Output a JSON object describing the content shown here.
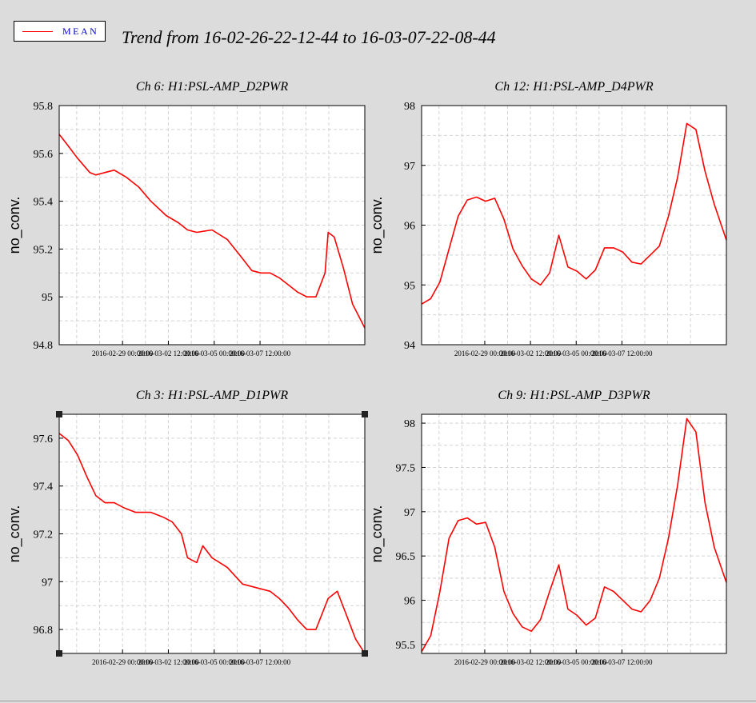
{
  "header": {
    "legend_label": "MEAN",
    "title": "Trend from 16-02-26-22-12-44 to 16-03-07-22-08-44"
  },
  "colors": {
    "series": "#ff0000",
    "legend_text": "#0000cc",
    "background": "#dcdcdc",
    "plot_background": "#ffffff",
    "grid": "#d2d2d2"
  },
  "chart_data": [
    {
      "type": "line",
      "title": "Ch 6: H1:PSL-AMP_D2PWR",
      "ylabel": "no_conv.",
      "xlabel": "",
      "ylim": [
        94.8,
        95.8
      ],
      "yticks": [
        94.8,
        95.0,
        95.2,
        95.4,
        95.6,
        95.8
      ],
      "ytick_labels": [
        "94.8",
        "95",
        "95.2",
        "95.4",
        "95.6",
        "95.8"
      ],
      "xlim": [
        0.0,
        10.0
      ],
      "xticks": [
        2.0722,
        3.5722,
        5.0722,
        6.5722
      ],
      "xtick_labels": [
        "2016-02-29 00:00:00",
        "2016-03-02 12:00:00",
        "2016-03-05 00:00:00",
        "2016-03-07 12:00:00"
      ],
      "grid": true,
      "series": [
        {
          "x": [
            0,
            0.3,
            0.6,
            1.0,
            1.2,
            1.5,
            1.8,
            2.2,
            2.6,
            3.0,
            3.5,
            3.9,
            4.2,
            4.5,
            5.0,
            5.5,
            6.0,
            6.3,
            6.6,
            6.9,
            7.2,
            7.5,
            7.8,
            8.1,
            8.4,
            8.7,
            8.8,
            9.0,
            9.3,
            9.6,
            10.0
          ],
          "y": [
            95.68,
            95.63,
            95.58,
            95.52,
            95.51,
            95.52,
            95.53,
            95.5,
            95.46,
            95.4,
            95.34,
            95.31,
            95.28,
            95.27,
            95.28,
            95.24,
            95.16,
            95.11,
            95.1,
            95.1,
            95.08,
            95.05,
            95.02,
            95.0,
            95.0,
            95.1,
            95.27,
            95.25,
            95.12,
            94.97,
            94.87
          ]
        }
      ]
    },
    {
      "type": "line",
      "title": "Ch 12: H1:PSL-AMP_D4PWR",
      "ylabel": "no_conv.",
      "xlabel": "",
      "ylim": [
        94,
        98
      ],
      "yticks": [
        94,
        95,
        96,
        97,
        98
      ],
      "ytick_labels": [
        "94",
        "95",
        "96",
        "97",
        "98"
      ],
      "xlim": [
        0.0,
        10.0
      ],
      "xticks": [
        2.0722,
        3.5722,
        5.0722,
        6.5722
      ],
      "xtick_labels": [
        "2016-02-29 00:00:00",
        "2016-03-02 12:00:00",
        "2016-03-05 00:00:00",
        "2016-03-07 12:00:00"
      ],
      "grid": true,
      "series": [
        {
          "x": [
            0,
            0.3,
            0.6,
            0.9,
            1.2,
            1.5,
            1.8,
            2.1,
            2.4,
            2.7,
            3.0,
            3.3,
            3.6,
            3.9,
            4.2,
            4.5,
            4.8,
            5.1,
            5.4,
            5.7,
            6.0,
            6.3,
            6.6,
            6.9,
            7.2,
            7.5,
            7.8,
            8.1,
            8.4,
            8.7,
            9.0,
            9.3,
            9.6,
            10.0
          ],
          "y": [
            94.68,
            94.77,
            95.05,
            95.6,
            96.15,
            96.42,
            96.47,
            96.4,
            96.45,
            96.1,
            95.6,
            95.32,
            95.1,
            95.0,
            95.2,
            95.83,
            95.3,
            95.23,
            95.1,
            95.25,
            95.62,
            95.62,
            95.55,
            95.38,
            95.35,
            95.5,
            95.65,
            96.15,
            96.8,
            97.7,
            97.6,
            96.9,
            96.35,
            95.75
          ]
        }
      ]
    },
    {
      "type": "line",
      "title": "Ch 3: H1:PSL-AMP_D1PWR",
      "ylabel": "no_conv.",
      "xlabel": "",
      "ylim": [
        96.7,
        97.7
      ],
      "yticks": [
        96.8,
        97.0,
        97.2,
        97.4,
        97.6
      ],
      "ytick_labels": [
        "96.8",
        "97",
        "97.2",
        "97.4",
        "97.6"
      ],
      "xlim": [
        0.0,
        10.0
      ],
      "xticks": [
        2.0722,
        3.5722,
        5.0722,
        6.5722
      ],
      "xtick_labels": [
        "2016-02-29 00:00:00",
        "2016-03-02 12:00:00",
        "2016-03-05 00:00:00",
        "2016-03-07 12:00:00"
      ],
      "grid": true,
      "series": [
        {
          "x": [
            0,
            0.3,
            0.6,
            0.9,
            1.2,
            1.5,
            1.8,
            2.1,
            2.5,
            3.0,
            3.4,
            3.7,
            4.0,
            4.2,
            4.5,
            4.7,
            5.0,
            5.5,
            6.0,
            6.3,
            6.6,
            6.9,
            7.2,
            7.5,
            7.8,
            8.1,
            8.4,
            8.8,
            9.1,
            9.4,
            9.7,
            10.0
          ],
          "y": [
            97.62,
            97.59,
            97.53,
            97.44,
            97.36,
            97.33,
            97.33,
            97.31,
            97.29,
            97.29,
            97.27,
            97.25,
            97.2,
            97.1,
            97.08,
            97.15,
            97.1,
            97.06,
            96.99,
            96.98,
            96.97,
            96.96,
            96.93,
            96.89,
            96.84,
            96.8,
            96.8,
            96.93,
            96.96,
            96.86,
            96.76,
            96.7
          ]
        }
      ]
    },
    {
      "type": "line",
      "title": "Ch 9: H1:PSL-AMP_D3PWR",
      "ylabel": "no_conv.",
      "xlabel": "",
      "ylim": [
        95.4,
        98.1
      ],
      "yticks": [
        95.5,
        96.0,
        96.5,
        97.0,
        97.5,
        98.0
      ],
      "ytick_labels": [
        "95.5",
        "96",
        "96.5",
        "97",
        "97.5",
        "98"
      ],
      "xlim": [
        0.0,
        10.0
      ],
      "xticks": [
        2.0722,
        3.5722,
        5.0722,
        6.5722
      ],
      "xtick_labels": [
        "2016-02-29 00:00:00",
        "2016-03-02 12:00:00",
        "2016-03-05 00:00:00",
        "2016-03-07 12:00:00"
      ],
      "grid": true,
      "series": [
        {
          "x": [
            0,
            0.3,
            0.6,
            0.9,
            1.2,
            1.5,
            1.8,
            2.1,
            2.4,
            2.7,
            3.0,
            3.3,
            3.6,
            3.9,
            4.2,
            4.5,
            4.8,
            5.1,
            5.4,
            5.7,
            6.0,
            6.3,
            6.6,
            6.9,
            7.2,
            7.5,
            7.8,
            8.1,
            8.4,
            8.7,
            9.0,
            9.3,
            9.6,
            10.0
          ],
          "y": [
            95.42,
            95.6,
            96.1,
            96.7,
            96.9,
            96.93,
            96.86,
            96.88,
            96.6,
            96.1,
            95.85,
            95.7,
            95.65,
            95.78,
            96.1,
            96.4,
            95.9,
            95.83,
            95.72,
            95.8,
            96.15,
            96.1,
            96.0,
            95.9,
            95.87,
            96.0,
            96.25,
            96.7,
            97.3,
            98.05,
            97.9,
            97.1,
            96.6,
            96.2
          ]
        }
      ]
    }
  ]
}
